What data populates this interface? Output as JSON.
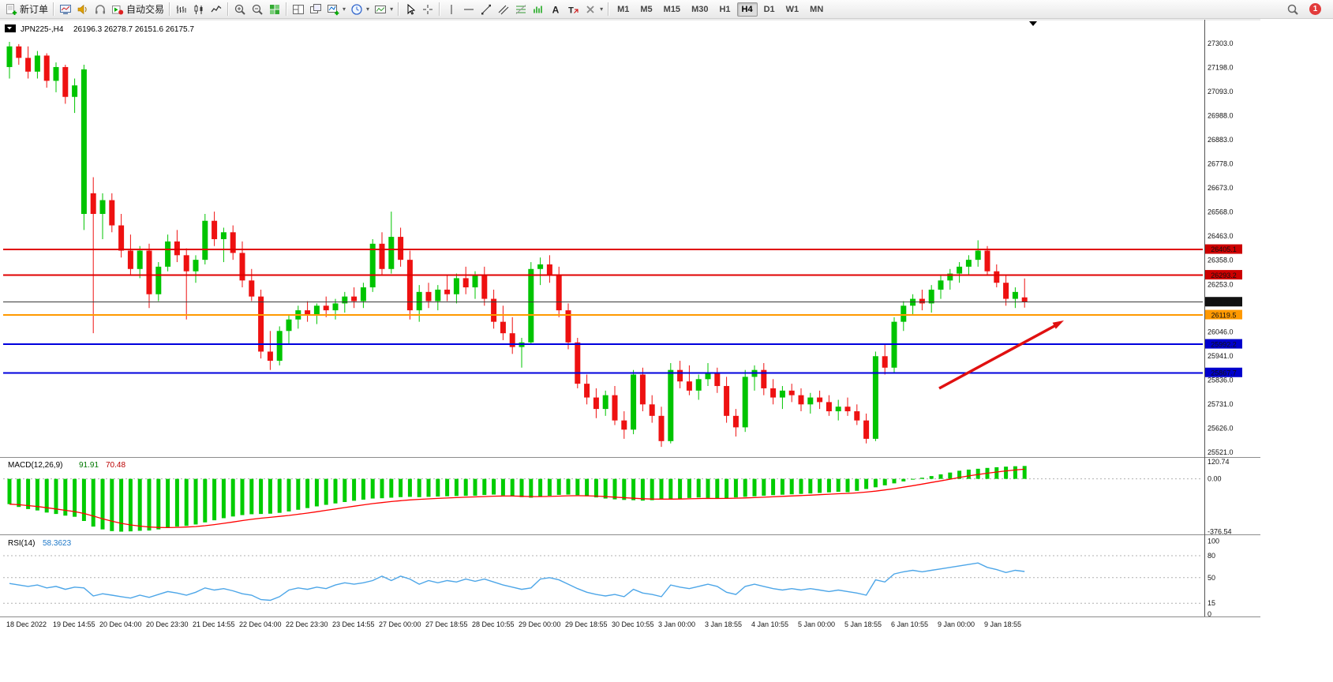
{
  "toolbar": {
    "items": [
      {
        "name": "new-order-button",
        "icon": "doc-plus",
        "label": "新订单"
      },
      {
        "name": "separator"
      },
      {
        "name": "charts-window-button",
        "icon": "monitor"
      },
      {
        "name": "sounds-button",
        "icon": "speaker"
      },
      {
        "name": "market-depth-button",
        "icon": "headset"
      },
      {
        "name": "auto-trading-button",
        "icon": "autotrade",
        "label": "自动交易"
      },
      {
        "name": "separator"
      },
      {
        "name": "bar-chart-button",
        "icon": "bars"
      },
      {
        "name": "candlestick-chart-button",
        "icon": "candles"
      },
      {
        "name": "line-chart-button",
        "icon": "linechart"
      },
      {
        "name": "separator"
      },
      {
        "name": "zoom-in-button",
        "icon": "zoom-in"
      },
      {
        "name": "zoom-out-button",
        "icon": "zoom-out"
      },
      {
        "name": "tile-windows-button",
        "icon": "grid-green"
      },
      {
        "name": "separator"
      },
      {
        "name": "new-window-button",
        "icon": "tile"
      },
      {
        "name": "cascade-windows-button",
        "icon": "cascade"
      },
      {
        "name": "new-chart-button",
        "icon": "chart-plus",
        "dropdown": true
      },
      {
        "name": "period-clock-button",
        "icon": "clock",
        "dropdown": true
      },
      {
        "name": "chart-template-button",
        "icon": "chart-shift",
        "dropdown": true
      },
      {
        "name": "separator"
      },
      {
        "name": "cursor-button",
        "icon": "cursor"
      },
      {
        "name": "crosshair-button",
        "icon": "crosshair"
      },
      {
        "name": "separator"
      },
      {
        "name": "vertical-line-button",
        "icon": "vline"
      },
      {
        "name": "horizontal-line-button",
        "icon": "hline"
      },
      {
        "name": "trendline-button",
        "icon": "tline"
      },
      {
        "name": "channel-button",
        "icon": "channel"
      },
      {
        "name": "fibonacci-button",
        "icon": "fibo"
      },
      {
        "name": "indicator-bars-button",
        "icon": "waves"
      },
      {
        "name": "text-button",
        "icon": "textA"
      },
      {
        "name": "text-label-button",
        "icon": "labelT"
      },
      {
        "name": "delete-objects-button",
        "icon": "delete",
        "dropdown": true
      },
      {
        "name": "separator"
      }
    ],
    "timeframes": [
      "M1",
      "M5",
      "M15",
      "M30",
      "H1",
      "H4",
      "D1",
      "W1",
      "MN"
    ],
    "active_timeframe": "H4",
    "notification_count": "1"
  },
  "chart": {
    "symbol_period": "JPN225-,H4",
    "ohlc": "26196.3 26278.7 26151.6 26175.7"
  },
  "price_axis": [
    "27303.0",
    "27198.0",
    "27093.0",
    "26988.0",
    "26883.0",
    "26778.0",
    "26673.0",
    "26568.0",
    "26463.0",
    "26358.0",
    "26253.0",
    "26046.0",
    "25941.0",
    "25836.0",
    "25731.0",
    "25626.0",
    "25521.0"
  ],
  "time_axis": [
    "18 Dec 2022",
    "19 Dec 14:55",
    "20 Dec 04:00",
    "20 Dec 23:30",
    "21 Dec 14:55",
    "22 Dec 04:00",
    "22 Dec 23:30",
    "23 Dec 14:55",
    "27 Dec 00:00",
    "27 Dec 18:55",
    "28 Dec 10:55",
    "29 Dec 00:00",
    "29 Dec 18:55",
    "30 Dec 10:55",
    "3 Jan 00:00",
    "3 Jan 18:55",
    "4 Jan 10:55",
    "5 Jan 00:00",
    "5 Jan 18:55",
    "6 Jan 10:55",
    "9 Jan 00:00",
    "9 Jan 18:55"
  ],
  "levels": [
    {
      "value": 26405.1,
      "label": "26405.1",
      "color": "#e00000",
      "tag_bg": "#cc0000",
      "width": 2
    },
    {
      "value": 26293.2,
      "label": "26293.2",
      "color": "#e00000",
      "tag_bg": "#cc0000",
      "width": 2
    },
    {
      "value": 26175.7,
      "label": "26175.7",
      "color": "#3a3a3a",
      "tag_bg": "#111111",
      "width": 1
    },
    {
      "value": 26119.5,
      "label": "26119.5",
      "color": "#ff9900",
      "tag_bg": "#ff9900",
      "width": 2
    },
    {
      "value": 25992.2,
      "label": "25992.2",
      "color": "#0000dd",
      "tag_bg": "#0000cc",
      "width": 2
    },
    {
      "value": 25867.7,
      "label": "25867.7",
      "color": "#0000dd",
      "tag_bg": "#0000cc",
      "width": 2
    }
  ],
  "indicators": {
    "macd": {
      "label": "MACD(12,26,9)",
      "main_value": "91.91",
      "signal_value": "70.48",
      "axis": [
        "120.74",
        "0.00",
        "-376.54"
      ]
    },
    "rsi": {
      "label": "RSI(14)",
      "value": "58.3623",
      "axis": [
        "100",
        "80",
        "50",
        "15",
        "0"
      ],
      "levels": [
        80,
        50,
        15
      ]
    }
  },
  "annotations": [
    {
      "type": "arrow-up-right",
      "color": "#e01010"
    }
  ],
  "colors": {
    "bull": "#00c400",
    "bear": "#ee1111",
    "macd": "#00cc00",
    "signal": "#ff0000",
    "rsi": "#4da6e8",
    "arrow": "#e01010",
    "current_price": "#333333"
  },
  "chart_data": {
    "type": "candlestick",
    "symbol": "JPN225-",
    "period": "H4",
    "candles": [
      [
        27200,
        27310,
        27150,
        27290
      ],
      [
        27290,
        27300,
        27210,
        27240
      ],
      [
        27240,
        27290,
        27150,
        27180
      ],
      [
        27180,
        27270,
        27150,
        27250
      ],
      [
        27250,
        27260,
        27110,
        27140
      ],
      [
        27140,
        27220,
        27090,
        27200
      ],
      [
        27200,
        27210,
        27040,
        27070
      ],
      [
        27070,
        27150,
        27000,
        27120
      ],
      [
        26560,
        27210,
        26490,
        27190
      ],
      [
        26650,
        26720,
        26040,
        26560
      ],
      [
        26560,
        26650,
        26450,
        26620
      ],
      [
        26620,
        26650,
        26480,
        26510
      ],
      [
        26510,
        26560,
        26370,
        26400
      ],
      [
        26400,
        26470,
        26290,
        26320
      ],
      [
        26320,
        26420,
        26280,
        26400
      ],
      [
        26400,
        26430,
        26150,
        26210
      ],
      [
        26210,
        26350,
        26180,
        26330
      ],
      [
        26330,
        26470,
        26310,
        26440
      ],
      [
        26440,
        26490,
        26350,
        26380
      ],
      [
        26380,
        26410,
        26100,
        26310
      ],
      [
        26310,
        26380,
        26260,
        26360
      ],
      [
        26360,
        26560,
        26340,
        26530
      ],
      [
        26530,
        26570,
        26420,
        26450
      ],
      [
        26450,
        26500,
        26350,
        26480
      ],
      [
        26480,
        26510,
        26360,
        26390
      ],
      [
        26390,
        26440,
        26240,
        26270
      ],
      [
        26270,
        26320,
        26180,
        26200
      ],
      [
        26200,
        26230,
        25930,
        25960
      ],
      [
        25960,
        26050,
        25880,
        25920
      ],
      [
        25920,
        26070,
        25900,
        26050
      ],
      [
        26050,
        26120,
        25990,
        26100
      ],
      [
        26100,
        26160,
        26060,
        26140
      ],
      [
        26140,
        26180,
        26090,
        26120
      ],
      [
        26120,
        26170,
        26080,
        26160
      ],
      [
        26160,
        26200,
        26110,
        26140
      ],
      [
        26140,
        26190,
        26100,
        26170
      ],
      [
        26170,
        26220,
        26130,
        26200
      ],
      [
        26200,
        26240,
        26150,
        26180
      ],
      [
        26180,
        26260,
        26150,
        26240
      ],
      [
        26240,
        26450,
        26220,
        26430
      ],
      [
        26430,
        26480,
        26290,
        26320
      ],
      [
        26320,
        26570,
        26300,
        26460
      ],
      [
        26460,
        26500,
        26330,
        26360
      ],
      [
        26360,
        26400,
        26100,
        26140
      ],
      [
        26140,
        26250,
        26090,
        26220
      ],
      [
        26220,
        26260,
        26150,
        26180
      ],
      [
        26180,
        26250,
        26140,
        26230
      ],
      [
        26230,
        26290,
        26180,
        26210
      ],
      [
        26210,
        26300,
        26170,
        26280
      ],
      [
        26280,
        26330,
        26210,
        26240
      ],
      [
        26240,
        26310,
        26190,
        26290
      ],
      [
        26290,
        26330,
        26160,
        26190
      ],
      [
        26190,
        26230,
        26060,
        26090
      ],
      [
        26090,
        26160,
        26010,
        26040
      ],
      [
        26040,
        26110,
        25950,
        25980
      ],
      [
        25980,
        26020,
        25890,
        26000
      ],
      [
        26000,
        26350,
        25990,
        26320
      ],
      [
        26320,
        26370,
        26250,
        26340
      ],
      [
        26340,
        26380,
        26260,
        26290
      ],
      [
        26290,
        26330,
        26110,
        26140
      ],
      [
        26140,
        26170,
        25970,
        26000
      ],
      [
        26000,
        26020,
        25800,
        25820
      ],
      [
        25820,
        25860,
        25730,
        25760
      ],
      [
        25760,
        25800,
        25670,
        25710
      ],
      [
        25710,
        25790,
        25680,
        25770
      ],
      [
        25770,
        25810,
        25640,
        25660
      ],
      [
        25660,
        25700,
        25580,
        25620
      ],
      [
        25620,
        25880,
        25600,
        25860
      ],
      [
        25860,
        25890,
        25700,
        25730
      ],
      [
        25730,
        25770,
        25650,
        25680
      ],
      [
        25680,
        25720,
        25545,
        25570
      ],
      [
        25570,
        25910,
        25560,
        25880
      ],
      [
        25880,
        25920,
        25800,
        25830
      ],
      [
        25830,
        25900,
        25770,
        25790
      ],
      [
        25790,
        25860,
        25750,
        25840
      ],
      [
        25840,
        25910,
        25810,
        25870
      ],
      [
        25870,
        25890,
        25780,
        25810
      ],
      [
        25810,
        25850,
        25650,
        25680
      ],
      [
        25680,
        25710,
        25590,
        25630
      ],
      [
        25630,
        25880,
        25610,
        25850
      ],
      [
        25850,
        25900,
        25790,
        25880
      ],
      [
        25880,
        25910,
        25770,
        25800
      ],
      [
        25800,
        25840,
        25730,
        25760
      ],
      [
        25760,
        25810,
        25710,
        25790
      ],
      [
        25790,
        25820,
        25740,
        25770
      ],
      [
        25770,
        25800,
        25700,
        25730
      ],
      [
        25730,
        25780,
        25690,
        25760
      ],
      [
        25760,
        25790,
        25710,
        25740
      ],
      [
        25740,
        25770,
        25680,
        25700
      ],
      [
        25700,
        25750,
        25660,
        25720
      ],
      [
        25720,
        25760,
        25680,
        25700
      ],
      [
        25700,
        25730,
        25640,
        25660
      ],
      [
        25660,
        25690,
        25560,
        25580
      ],
      [
        25580,
        25960,
        25570,
        25940
      ],
      [
        25940,
        25990,
        25860,
        25890
      ],
      [
        25890,
        26110,
        25870,
        26090
      ],
      [
        26090,
        26180,
        26050,
        26160
      ],
      [
        26160,
        26210,
        26120,
        26190
      ],
      [
        26190,
        26230,
        26140,
        26170
      ],
      [
        26170,
        26250,
        26130,
        26230
      ],
      [
        26230,
        26290,
        26190,
        26270
      ],
      [
        26270,
        26320,
        26230,
        26300
      ],
      [
        26300,
        26350,
        26260,
        26330
      ],
      [
        26330,
        26380,
        26290,
        26360
      ],
      [
        26360,
        26445,
        26330,
        26400
      ],
      [
        26400,
        26420,
        26290,
        26310
      ],
      [
        26310,
        26340,
        26240,
        26260
      ],
      [
        26260,
        26290,
        26160,
        26190
      ],
      [
        26190,
        26240,
        26150,
        26220
      ],
      [
        26196.3,
        26278.7,
        26151.6,
        26175.7
      ]
    ],
    "macd_histogram": [
      -180,
      -200,
      -215,
      -225,
      -240,
      -250,
      -262,
      -270,
      -300,
      -340,
      -360,
      -372,
      -376,
      -374,
      -370,
      -368,
      -360,
      -350,
      -340,
      -335,
      -325,
      -310,
      -295,
      -280,
      -268,
      -258,
      -252,
      -250,
      -248,
      -242,
      -232,
      -220,
      -208,
      -196,
      -185,
      -175,
      -165,
      -156,
      -148,
      -140,
      -138,
      -134,
      -130,
      -128,
      -130,
      -128,
      -126,
      -124,
      -122,
      -121,
      -120,
      -115,
      -112,
      -118,
      -124,
      -130,
      -134,
      -128,
      -120,
      -114,
      -112,
      -116,
      -124,
      -132,
      -140,
      -146,
      -150,
      -152,
      -155,
      -152,
      -148,
      -144,
      -140,
      -136,
      -133,
      -136,
      -140,
      -137,
      -132,
      -128,
      -124,
      -120,
      -116,
      -113,
      -110,
      -107,
      -104,
      -100,
      -96,
      -92,
      -95,
      -85,
      -72,
      -60,
      -46,
      -32,
      -18,
      -5,
      8,
      20,
      32,
      45,
      58,
      66,
      72,
      78,
      83,
      87,
      90,
      91.91
    ],
    "rsi": [
      42,
      40,
      38,
      40,
      36,
      38,
      34,
      37,
      36,
      25,
      28,
      26,
      24,
      22,
      26,
      23,
      27,
      31,
      29,
      26,
      30,
      36,
      33,
      35,
      32,
      28,
      26,
      20,
      19,
      24,
      33,
      36,
      34,
      37,
      35,
      40,
      43,
      41,
      43,
      46,
      52,
      46,
      52,
      48,
      41,
      46,
      43,
      46,
      44,
      48,
      45,
      48,
      44,
      40,
      37,
      34,
      36,
      48,
      50,
      47,
      41,
      35,
      30,
      27,
      25,
      27,
      24,
      34,
      29,
      27,
      24,
      40,
      37,
      35,
      38,
      41,
      38,
      30,
      27,
      38,
      41,
      38,
      35,
      33,
      35,
      33,
      35,
      33,
      31,
      33,
      31,
      29,
      26,
      47,
      44,
      55,
      58,
      60,
      58,
      60,
      62,
      64,
      66,
      68,
      70,
      64,
      61,
      57,
      60,
      58.36
    ]
  }
}
